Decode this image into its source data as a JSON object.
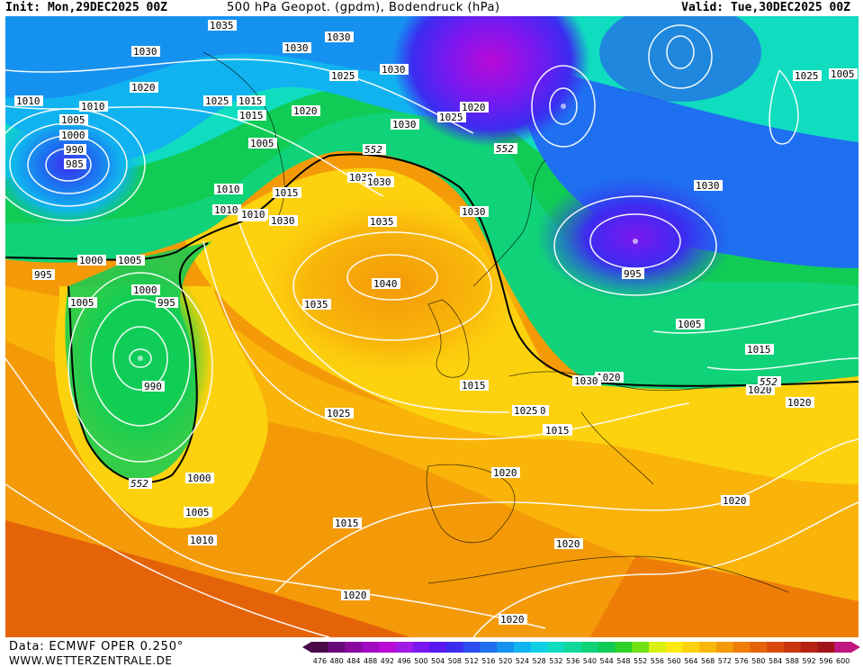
{
  "header": {
    "init": "Init: Mon,29DEC2025 00Z",
    "title": "500 hPa Geopot. (gpdm), Bodendruck (hPa)",
    "valid": "Valid: Tue,30DEC2025 00Z"
  },
  "footer": {
    "data_source": "Data: ECMWF OPER 0.250°",
    "website": "WWW.WETTERZENTRALE.DE"
  },
  "legend": {
    "levels": [
      "476",
      "480",
      "484",
      "488",
      "492",
      "496",
      "500",
      "504",
      "508",
      "512",
      "516",
      "520",
      "524",
      "528",
      "532",
      "536",
      "540",
      "544",
      "548",
      "552",
      "556",
      "560",
      "564",
      "568",
      "572",
      "576",
      "580",
      "584",
      "588",
      "592",
      "596",
      "600"
    ],
    "colors": [
      "#4a0a4a",
      "#6a0a7a",
      "#8a0aa0",
      "#a10ac0",
      "#b90ad6",
      "#a11ae6",
      "#7a18f0",
      "#5a18f0",
      "#3c2cf0",
      "#2a4ef0",
      "#1e70f0",
      "#1592f0",
      "#10b3ef",
      "#10d0e6",
      "#10dcc0",
      "#10d89a",
      "#10d278",
      "#10cc55",
      "#2ed12a",
      "#6fe013",
      "#d9f010",
      "#fde812",
      "#fcd20e",
      "#f9b60a",
      "#f49a08",
      "#ee7d08",
      "#e56308",
      "#d84a0c",
      "#c9350f",
      "#b62212",
      "#a01418",
      "#c01880"
    ]
  },
  "isobar_labels": [
    "1035",
    "1030",
    "1030",
    "1030",
    "1025",
    "1030",
    "1020",
    "1015",
    "1025",
    "1020",
    "1015",
    "1010",
    "1010",
    "1005",
    "1000",
    "990",
    "985",
    "1020",
    "1005",
    "1030",
    "1025",
    "1030",
    "1030",
    "1015",
    "1010",
    "1010",
    "1015",
    "1030",
    "1000",
    "1005",
    "995",
    "1010",
    "1035",
    "1005",
    "1040",
    "1000",
    "995",
    "1035",
    "990",
    "1005",
    "1025",
    "1025",
    "1030",
    "1015",
    "1030",
    "1020",
    "1015",
    "995",
    "1005",
    "1015",
    "1025",
    "1020",
    "1000",
    "1005",
    "1010",
    "1015",
    "1020",
    "1020",
    "1020",
    "1020",
    "1015",
    "1020",
    "1030",
    "1020",
    "1030"
  ],
  "contour_labels": [
    "552",
    "552",
    "552",
    "552"
  ],
  "map_features": {
    "lows": [
      "low-center-north-atlantic",
      "low-center-newfoundland",
      "low-center-scandinavia",
      "low-center-russia"
    ],
    "highs": [
      "high-center-british-isles"
    ]
  }
}
